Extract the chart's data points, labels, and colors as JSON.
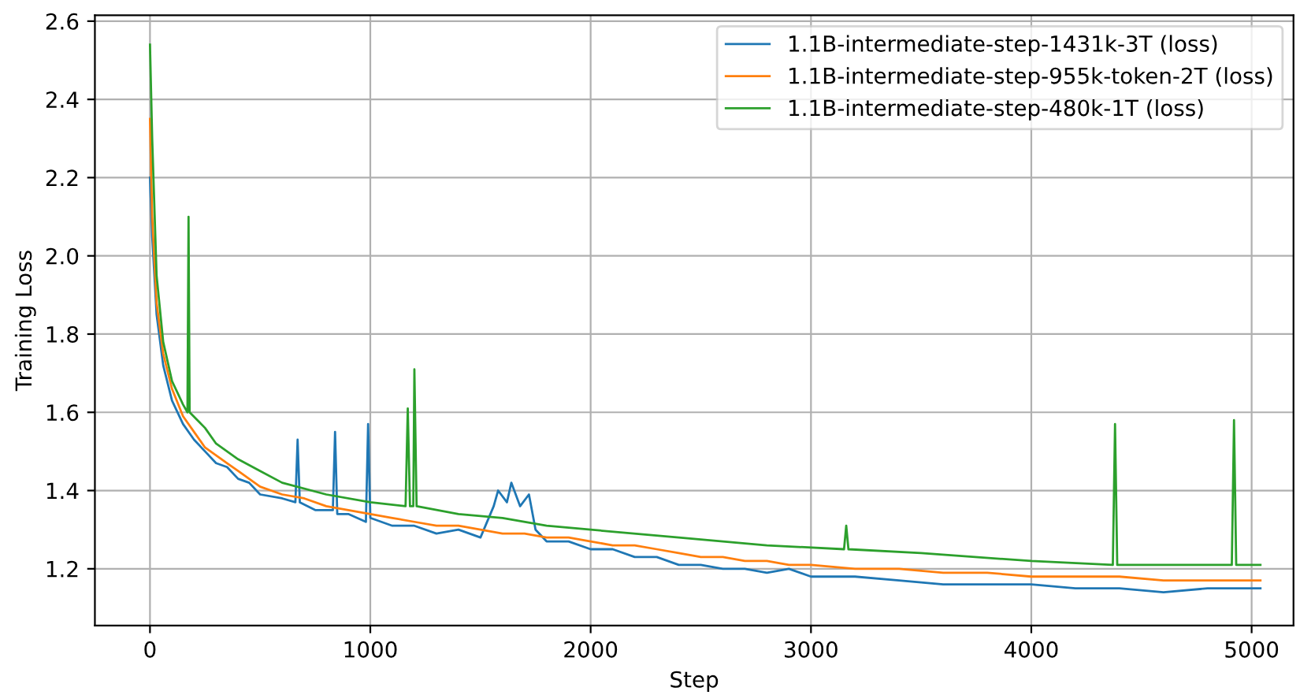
{
  "chart_data": {
    "type": "line",
    "xlabel": "Step",
    "ylabel": "Training Loss",
    "xlim": [
      -250,
      5190
    ],
    "ylim": [
      1.055,
      2.615
    ],
    "xticks": [
      0,
      1000,
      2000,
      3000,
      4000,
      5000
    ],
    "yticks": [
      1.2,
      1.4,
      1.6,
      1.8,
      {
        "value": 2,
        "label": "2.0"
      },
      2.2,
      2.4,
      2.6
    ],
    "grid": true,
    "legend": "top right",
    "series": [
      {
        "name": "1.1B-intermediate-step-1431k-3T (loss)",
        "color": "#1f77b4",
        "x": [
          0,
          10,
          30,
          60,
          100,
          150,
          200,
          250,
          300,
          350,
          400,
          450,
          500,
          600,
          660,
          670,
          680,
          750,
          830,
          840,
          850,
          900,
          980,
          990,
          1000,
          1100,
          1200,
          1300,
          1400,
          1500,
          1560,
          1580,
          1620,
          1640,
          1680,
          1720,
          1750,
          1800,
          1900,
          2000,
          2100,
          2200,
          2300,
          2400,
          2500,
          2600,
          2700,
          2800,
          2900,
          3000,
          3200,
          3400,
          3600,
          3800,
          4000,
          4200,
          4400,
          4600,
          4800,
          5040
        ],
        "values": [
          2.2,
          2.05,
          1.85,
          1.72,
          1.63,
          1.57,
          1.53,
          1.5,
          1.47,
          1.46,
          1.43,
          1.42,
          1.39,
          1.38,
          1.37,
          1.53,
          1.37,
          1.35,
          1.35,
          1.55,
          1.34,
          1.34,
          1.32,
          1.57,
          1.33,
          1.31,
          1.31,
          1.29,
          1.3,
          1.28,
          1.36,
          1.4,
          1.37,
          1.42,
          1.36,
          1.39,
          1.3,
          1.27,
          1.27,
          1.25,
          1.25,
          1.23,
          1.23,
          1.21,
          1.21,
          1.2,
          1.2,
          1.19,
          1.2,
          1.18,
          1.18,
          1.17,
          1.16,
          1.16,
          1.16,
          1.15,
          1.15,
          1.14,
          1.15,
          1.15
        ]
      },
      {
        "name": "1.1B-intermediate-step-955k-token-2T (loss)",
        "color": "#ff7f0e",
        "x": [
          0,
          10,
          30,
          60,
          100,
          150,
          200,
          250,
          300,
          350,
          400,
          450,
          500,
          600,
          700,
          800,
          900,
          1000,
          1100,
          1200,
          1300,
          1400,
          1500,
          1600,
          1700,
          1800,
          1900,
          2000,
          2100,
          2200,
          2300,
          2400,
          2500,
          2600,
          2700,
          2800,
          2900,
          3000,
          3200,
          3400,
          3600,
          3800,
          4000,
          4200,
          4400,
          4600,
          4800,
          5040
        ],
        "values": [
          2.35,
          2.1,
          1.88,
          1.75,
          1.66,
          1.59,
          1.55,
          1.51,
          1.49,
          1.47,
          1.45,
          1.43,
          1.41,
          1.39,
          1.38,
          1.36,
          1.35,
          1.34,
          1.33,
          1.32,
          1.31,
          1.31,
          1.3,
          1.29,
          1.29,
          1.28,
          1.28,
          1.27,
          1.26,
          1.26,
          1.25,
          1.24,
          1.23,
          1.23,
          1.22,
          1.22,
          1.21,
          1.21,
          1.2,
          1.2,
          1.19,
          1.19,
          1.18,
          1.18,
          1.18,
          1.17,
          1.17,
          1.17
        ]
      },
      {
        "name": "1.1B-intermediate-step-480k-1T (loss)",
        "color": "#2ca02c",
        "x": [
          0,
          10,
          30,
          60,
          100,
          150,
          170,
          175,
          180,
          250,
          300,
          400,
          500,
          600,
          800,
          1000,
          1160,
          1170,
          1180,
          1195,
          1200,
          1210,
          1400,
          1600,
          1800,
          2000,
          2400,
          2800,
          3150,
          3160,
          3170,
          3500,
          4000,
          4370,
          4380,
          4390,
          4600,
          4910,
          4920,
          4930,
          5040
        ],
        "values": [
          2.54,
          2.3,
          1.95,
          1.78,
          1.68,
          1.62,
          1.6,
          2.1,
          1.6,
          1.56,
          1.52,
          1.48,
          1.45,
          1.42,
          1.39,
          1.37,
          1.36,
          1.61,
          1.36,
          1.36,
          1.71,
          1.36,
          1.34,
          1.33,
          1.31,
          1.3,
          1.28,
          1.26,
          1.25,
          1.31,
          1.25,
          1.24,
          1.22,
          1.21,
          1.57,
          1.21,
          1.21,
          1.21,
          1.58,
          1.21,
          1.21
        ]
      }
    ]
  }
}
